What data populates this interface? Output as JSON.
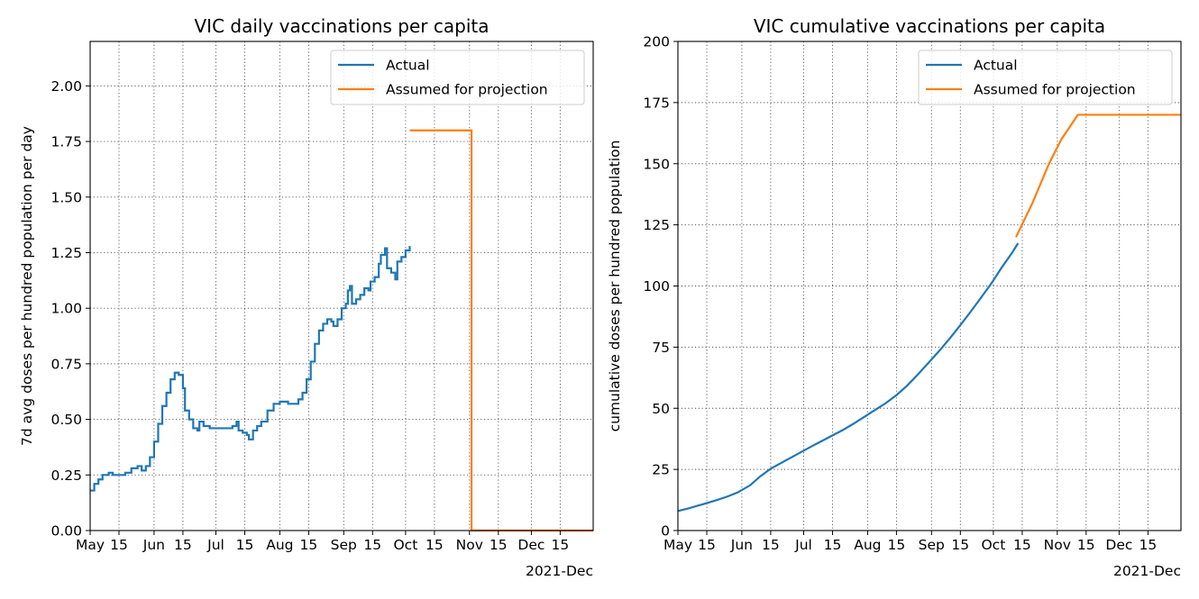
{
  "colors": {
    "actual": "#1f77b4",
    "projection": "#ff7f0e",
    "grid": "#555555"
  },
  "chart_data": [
    {
      "type": "line",
      "title": "VIC daily vaccinations per capita",
      "xlabel": "",
      "ylabel": "7d avg doses per hundred population per day",
      "x_axis": "date",
      "xlim": [
        "2021-05-01",
        "2021-12-31"
      ],
      "ylim": [
        0,
        2.2
      ],
      "y_ticks": [
        "0.00",
        "0.25",
        "0.50",
        "0.75",
        "1.00",
        "1.25",
        "1.50",
        "1.75",
        "2.00"
      ],
      "x_ticks": [
        {
          "date": "2021-05-01",
          "label": "May"
        },
        {
          "date": "2021-05-15",
          "label": "15"
        },
        {
          "date": "2021-06-01",
          "label": "Jun"
        },
        {
          "date": "2021-06-15",
          "label": "15"
        },
        {
          "date": "2021-07-01",
          "label": "Jul"
        },
        {
          "date": "2021-07-15",
          "label": "15"
        },
        {
          "date": "2021-08-01",
          "label": "Aug"
        },
        {
          "date": "2021-08-15",
          "label": "15"
        },
        {
          "date": "2021-09-01",
          "label": "Sep"
        },
        {
          "date": "2021-09-15",
          "label": "15"
        },
        {
          "date": "2021-10-01",
          "label": "Oct"
        },
        {
          "date": "2021-10-15",
          "label": "15"
        },
        {
          "date": "2021-11-01",
          "label": "Nov"
        },
        {
          "date": "2021-11-15",
          "label": "15"
        },
        {
          "date": "2021-12-01",
          "label": "Dec"
        },
        {
          "date": "2021-12-15",
          "label": "15"
        }
      ],
      "axis_offset_label": "2021-Dec",
      "grid": true,
      "legend": "top-right",
      "step": true,
      "series": [
        {
          "name": "Actual",
          "color": "#1f77b4",
          "points": [
            [
              "2021-05-01",
              0.18
            ],
            [
              "2021-05-03",
              0.21
            ],
            [
              "2021-05-05",
              0.23
            ],
            [
              "2021-05-07",
              0.25
            ],
            [
              "2021-05-10",
              0.26
            ],
            [
              "2021-05-12",
              0.25
            ],
            [
              "2021-05-16",
              0.25
            ],
            [
              "2021-05-18",
              0.26
            ],
            [
              "2021-05-21",
              0.28
            ],
            [
              "2021-05-24",
              0.29
            ],
            [
              "2021-05-26",
              0.27
            ],
            [
              "2021-05-28",
              0.29
            ],
            [
              "2021-05-30",
              0.33
            ],
            [
              "2021-06-01",
              0.4
            ],
            [
              "2021-06-03",
              0.48
            ],
            [
              "2021-06-05",
              0.56
            ],
            [
              "2021-06-07",
              0.62
            ],
            [
              "2021-06-09",
              0.68
            ],
            [
              "2021-06-11",
              0.71
            ],
            [
              "2021-06-13",
              0.7
            ],
            [
              "2021-06-15",
              0.64
            ],
            [
              "2021-06-16",
              0.54
            ],
            [
              "2021-06-18",
              0.5
            ],
            [
              "2021-06-20",
              0.46
            ],
            [
              "2021-06-22",
              0.45
            ],
            [
              "2021-06-23",
              0.49
            ],
            [
              "2021-06-25",
              0.47
            ],
            [
              "2021-06-28",
              0.46
            ],
            [
              "2021-07-01",
              0.46
            ],
            [
              "2021-07-05",
              0.46
            ],
            [
              "2021-07-09",
              0.47
            ],
            [
              "2021-07-11",
              0.49
            ],
            [
              "2021-07-12",
              0.45
            ],
            [
              "2021-07-14",
              0.44
            ],
            [
              "2021-07-16",
              0.43
            ],
            [
              "2021-07-17",
              0.41
            ],
            [
              "2021-07-19",
              0.45
            ],
            [
              "2021-07-21",
              0.47
            ],
            [
              "2021-07-23",
              0.49
            ],
            [
              "2021-07-26",
              0.54
            ],
            [
              "2021-07-29",
              0.57
            ],
            [
              "2021-08-01",
              0.58
            ],
            [
              "2021-08-05",
              0.57
            ],
            [
              "2021-08-08",
              0.57
            ],
            [
              "2021-08-10",
              0.59
            ],
            [
              "2021-08-12",
              0.62
            ],
            [
              "2021-08-14",
              0.68
            ],
            [
              "2021-08-16",
              0.76
            ],
            [
              "2021-08-18",
              0.84
            ],
            [
              "2021-08-20",
              0.9
            ],
            [
              "2021-08-22",
              0.93
            ],
            [
              "2021-08-24",
              0.95
            ],
            [
              "2021-08-26",
              0.94
            ],
            [
              "2021-08-27",
              0.92
            ],
            [
              "2021-08-29",
              0.95
            ],
            [
              "2021-08-31",
              1.0
            ],
            [
              "2021-09-02",
              1.02
            ],
            [
              "2021-09-03",
              1.08
            ],
            [
              "2021-09-04",
              1.1
            ],
            [
              "2021-09-05",
              1.02
            ],
            [
              "2021-09-07",
              1.04
            ],
            [
              "2021-09-09",
              1.06
            ],
            [
              "2021-09-11",
              1.09
            ],
            [
              "2021-09-13",
              1.08
            ],
            [
              "2021-09-14",
              1.12
            ],
            [
              "2021-09-16",
              1.14
            ],
            [
              "2021-09-18",
              1.2
            ],
            [
              "2021-09-19",
              1.24
            ],
            [
              "2021-09-21",
              1.27
            ],
            [
              "2021-09-22",
              1.18
            ],
            [
              "2021-09-24",
              1.16
            ],
            [
              "2021-09-26",
              1.13
            ],
            [
              "2021-09-27",
              1.21
            ],
            [
              "2021-09-29",
              1.23
            ],
            [
              "2021-10-01",
              1.26
            ],
            [
              "2021-10-03",
              1.28
            ]
          ]
        },
        {
          "name": "Assumed for projection",
          "color": "#ff7f0e",
          "points": [
            [
              "2021-10-03",
              1.8
            ],
            [
              "2021-11-02",
              1.8
            ],
            [
              "2021-11-02",
              0.0
            ],
            [
              "2021-12-31",
              0.0
            ]
          ]
        }
      ]
    },
    {
      "type": "line",
      "title": "VIC cumulative vaccinations per capita",
      "xlabel": "",
      "ylabel": "cumulative doses per hundred population",
      "x_axis": "date",
      "xlim": [
        "2021-05-01",
        "2021-12-31"
      ],
      "ylim": [
        0,
        200
      ],
      "y_ticks": [
        "0",
        "25",
        "50",
        "75",
        "100",
        "125",
        "150",
        "175",
        "200"
      ],
      "x_ticks": [
        {
          "date": "2021-05-01",
          "label": "May"
        },
        {
          "date": "2021-05-15",
          "label": "15"
        },
        {
          "date": "2021-06-01",
          "label": "Jun"
        },
        {
          "date": "2021-06-15",
          "label": "15"
        },
        {
          "date": "2021-07-01",
          "label": "Jul"
        },
        {
          "date": "2021-07-15",
          "label": "15"
        },
        {
          "date": "2021-08-01",
          "label": "Aug"
        },
        {
          "date": "2021-08-15",
          "label": "15"
        },
        {
          "date": "2021-09-01",
          "label": "Sep"
        },
        {
          "date": "2021-09-15",
          "label": "15"
        },
        {
          "date": "2021-10-01",
          "label": "Oct"
        },
        {
          "date": "2021-10-15",
          "label": "15"
        },
        {
          "date": "2021-11-01",
          "label": "Nov"
        },
        {
          "date": "2021-11-15",
          "label": "15"
        },
        {
          "date": "2021-12-01",
          "label": "Dec"
        },
        {
          "date": "2021-12-15",
          "label": "15"
        }
      ],
      "axis_offset_label": "2021-Dec",
      "grid": true,
      "legend": "top-right",
      "step": false,
      "series": [
        {
          "name": "Actual",
          "color": "#1f77b4",
          "points": [
            [
              "2021-05-01",
              8
            ],
            [
              "2021-05-05",
              8.8
            ],
            [
              "2021-05-10",
              10
            ],
            [
              "2021-05-15",
              11.2
            ],
            [
              "2021-05-20",
              12.5
            ],
            [
              "2021-05-25",
              13.9
            ],
            [
              "2021-05-30",
              15.6
            ],
            [
              "2021-06-05",
              18.5
            ],
            [
              "2021-06-10",
              22.2
            ],
            [
              "2021-06-15",
              25.3
            ],
            [
              "2021-06-20",
              27.6
            ],
            [
              "2021-06-25",
              29.9
            ],
            [
              "2021-06-30",
              32.2
            ],
            [
              "2021-07-05",
              34.5
            ],
            [
              "2021-07-10",
              36.7
            ],
            [
              "2021-07-15",
              38.9
            ],
            [
              "2021-07-20",
              41.1
            ],
            [
              "2021-07-25",
              43.6
            ],
            [
              "2021-07-31",
              46.8
            ],
            [
              "2021-08-05",
              49.5
            ],
            [
              "2021-08-10",
              52.2
            ],
            [
              "2021-08-15",
              55.4
            ],
            [
              "2021-08-20",
              59.1
            ],
            [
              "2021-08-25",
              63.5
            ],
            [
              "2021-08-31",
              69.0
            ],
            [
              "2021-09-05",
              73.7
            ],
            [
              "2021-09-10",
              78.7
            ],
            [
              "2021-09-15",
              84.0
            ],
            [
              "2021-09-20",
              89.5
            ],
            [
              "2021-09-25",
              95.2
            ],
            [
              "2021-09-30",
              101.0
            ],
            [
              "2021-10-05",
              107.5
            ],
            [
              "2021-10-10",
              113.5
            ],
            [
              "2021-10-13",
              117.5
            ]
          ]
        },
        {
          "name": "Assumed for projection",
          "color": "#ff7f0e",
          "points": [
            [
              "2021-10-12",
              120
            ],
            [
              "2021-10-20",
              134
            ],
            [
              "2021-10-28",
              150
            ],
            [
              "2021-11-03",
              160
            ],
            [
              "2021-11-11",
              170
            ],
            [
              "2021-12-31",
              170
            ]
          ]
        }
      ]
    }
  ]
}
